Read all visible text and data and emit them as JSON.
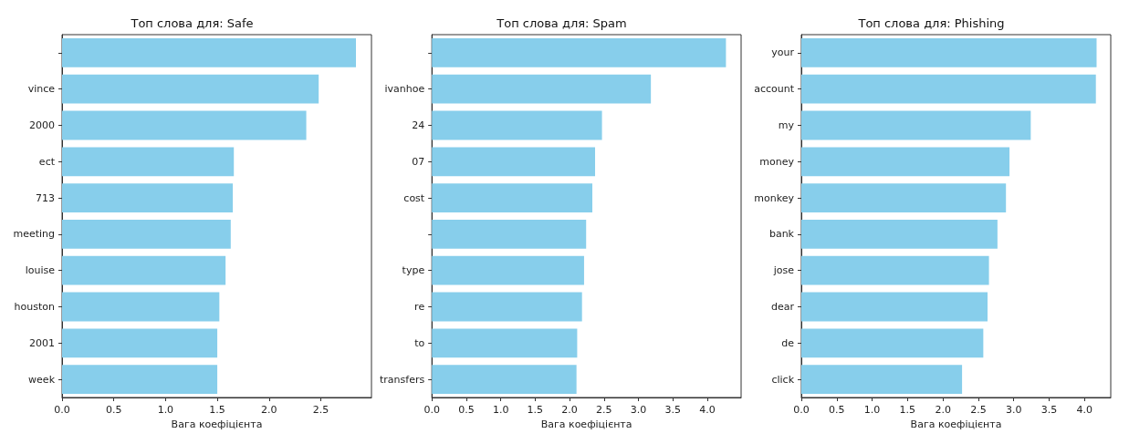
{
  "chart_data": [
    {
      "type": "bar",
      "orientation": "horizontal",
      "title": "Топ слова для: Safe",
      "xlabel": "Вага коефіцієнта",
      "categories": [
        null,
        "vince",
        "2000",
        "ect",
        "713",
        "meeting",
        "louise",
        "houston",
        "2001",
        "week"
      ],
      "values": [
        2.84,
        2.48,
        2.36,
        1.66,
        1.65,
        1.63,
        1.58,
        1.52,
        1.5,
        1.5
      ],
      "color": "#87ceeb",
      "xlim": [
        0,
        2.99
      ],
      "xticks": [
        {
          "value": 0,
          "label": "0.0"
        },
        {
          "value": 0.5,
          "label": "0.5"
        },
        {
          "value": 1,
          "label": "1.0"
        },
        {
          "value": 1.5,
          "label": "1.5"
        },
        {
          "value": 2,
          "label": "2.0"
        },
        {
          "value": 2.5,
          "label": "2.5"
        }
      ],
      "grid": false
    },
    {
      "type": "bar",
      "orientation": "horizontal",
      "title": "Топ слова для: Spam",
      "xlabel": "Вага коефіцієнта",
      "categories": [
        null,
        "ivanhoe",
        "24",
        "07",
        "cost",
        null,
        "type",
        "re",
        "to",
        "transfers"
      ],
      "values": [
        4.27,
        3.18,
        2.47,
        2.37,
        2.33,
        2.24,
        2.21,
        2.18,
        2.11,
        2.1
      ],
      "color": "#87ceeb",
      "xlim": [
        0,
        4.49
      ],
      "xticks": [
        {
          "value": 0,
          "label": "0.0"
        },
        {
          "value": 0.5,
          "label": "0.5"
        },
        {
          "value": 1,
          "label": "1.0"
        },
        {
          "value": 1.5,
          "label": "1.5"
        },
        {
          "value": 2,
          "label": "2.0"
        },
        {
          "value": 2.5,
          "label": "2.5"
        },
        {
          "value": 3,
          "label": "3.0"
        },
        {
          "value": 3.5,
          "label": "3.5"
        },
        {
          "value": 4,
          "label": "4.0"
        }
      ],
      "grid": false
    },
    {
      "type": "bar",
      "orientation": "horizontal",
      "title": "Топ слова для: Phishing",
      "xlabel": "Вага коефіцієнта",
      "categories": [
        "your",
        "account",
        "my",
        "money",
        "monkey",
        "bank",
        "jose",
        "dear",
        "de",
        "click"
      ],
      "values": [
        4.17,
        4.16,
        3.24,
        2.94,
        2.89,
        2.77,
        2.65,
        2.63,
        2.57,
        2.27
      ],
      "color": "#87ceeb",
      "xlim": [
        0,
        4.37
      ],
      "xticks": [
        {
          "value": 0,
          "label": "0.0"
        },
        {
          "value": 0.5,
          "label": "0.5"
        },
        {
          "value": 1,
          "label": "1.0"
        },
        {
          "value": 1.5,
          "label": "1.5"
        },
        {
          "value": 2,
          "label": "2.0"
        },
        {
          "value": 2.5,
          "label": "2.5"
        },
        {
          "value": 3,
          "label": "3.0"
        },
        {
          "value": 3.5,
          "label": "3.5"
        },
        {
          "value": 4,
          "label": "4.0"
        }
      ],
      "grid": false
    }
  ]
}
